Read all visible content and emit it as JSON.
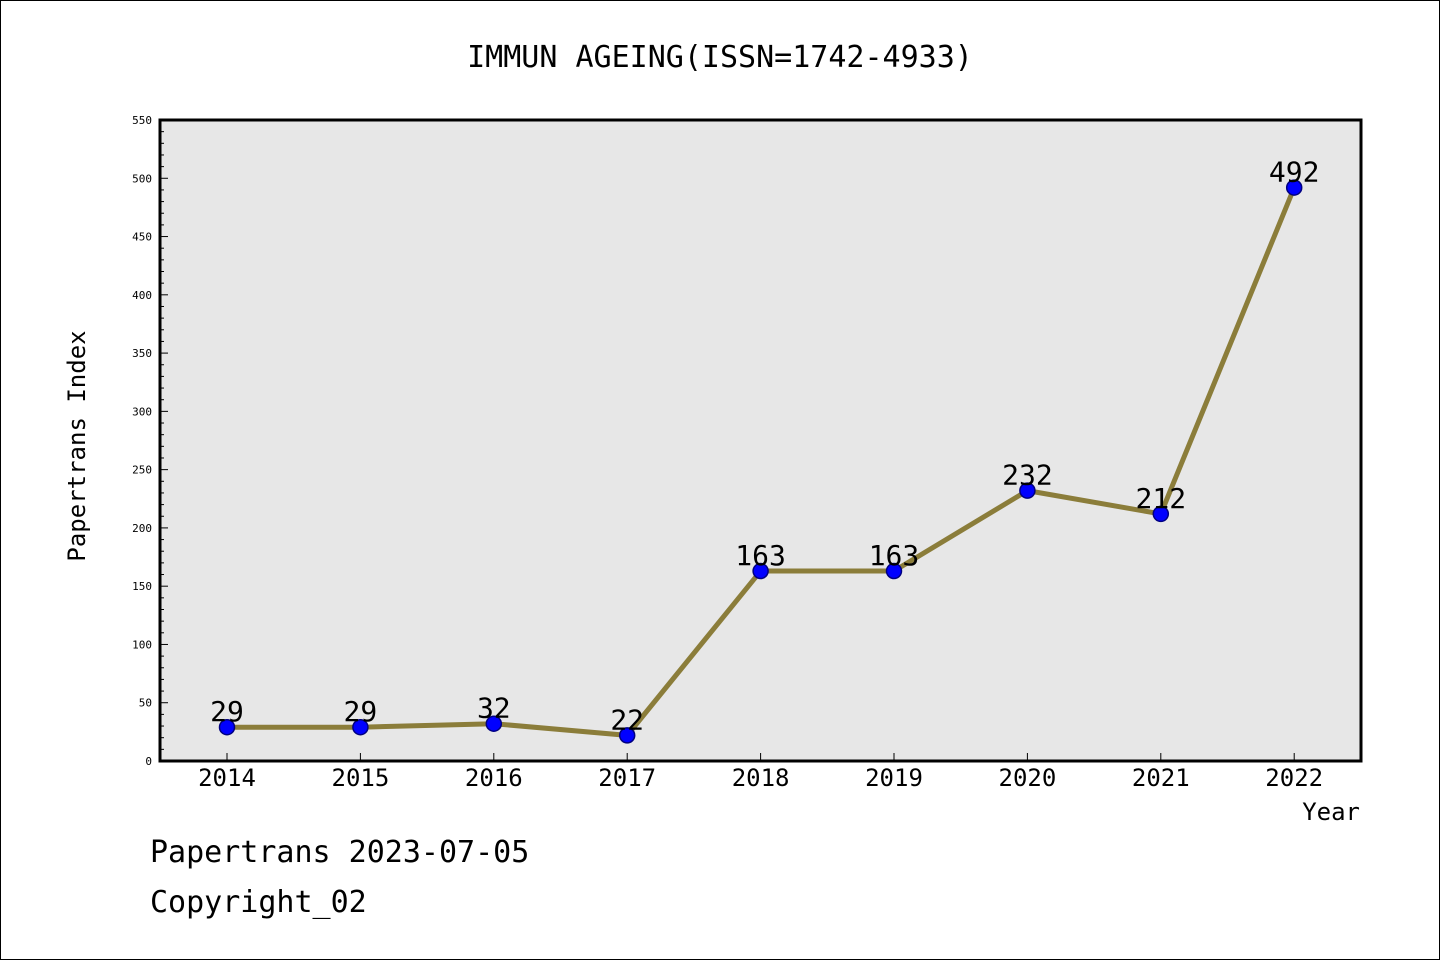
{
  "footer": {
    "line1": "Papertrans 2023-07-05",
    "line2": "Copyright_02"
  },
  "chart_data": {
    "type": "line",
    "title": "IMMUN AGEING(ISSN=1742-4933)",
    "xlabel": "Year",
    "ylabel": "Papertrans Index",
    "categories": [
      "2014",
      "2015",
      "2016",
      "2017",
      "2018",
      "2019",
      "2020",
      "2021",
      "2022"
    ],
    "series": [
      {
        "values": [
          29,
          29,
          32,
          22,
          163,
          163,
          232,
          212,
          492
        ]
      }
    ],
    "ylim": [
      0,
      550
    ],
    "yticks": [
      0,
      50,
      100,
      150,
      200,
      250,
      300,
      350,
      400,
      450,
      500,
      550
    ],
    "grid": false,
    "legend": "none",
    "data_labels": true,
    "colors": {
      "line": "#8b7d3a",
      "marker": "#0000ff",
      "marker_edge": "#000080",
      "plot_background": "#e7e7e7"
    }
  }
}
